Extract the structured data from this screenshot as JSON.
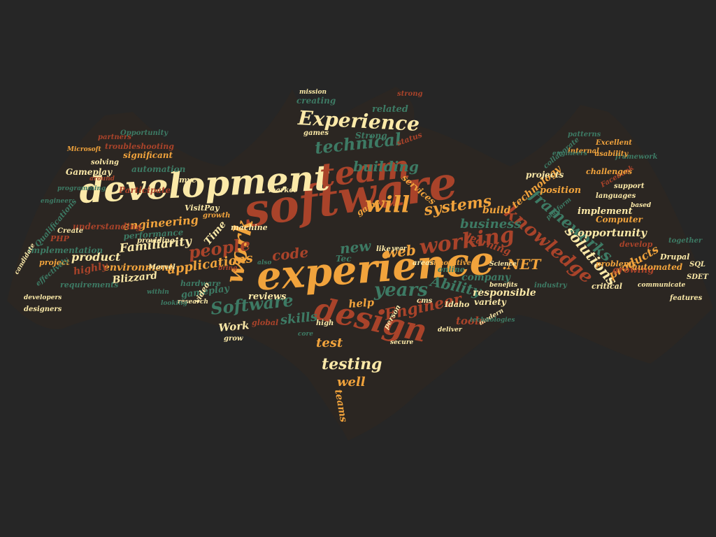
{
  "palette": {
    "background": "#262626",
    "cream": "#fbe9a8",
    "orange": "#f1a33c",
    "rust": "#a9432a",
    "green": "#3d7a64"
  },
  "shape": "bat-silhouette",
  "words": [
    {
      "text": "software",
      "color": "rust"
    },
    {
      "text": "experience",
      "color": "orange"
    },
    {
      "text": "development",
      "color": "cream"
    },
    {
      "text": "team",
      "color": "rust"
    },
    {
      "text": "design",
      "color": "rust"
    },
    {
      "text": "will",
      "color": "orange"
    },
    {
      "text": "work",
      "color": "orange"
    },
    {
      "text": "Experience",
      "color": "cream"
    },
    {
      "text": "working",
      "color": "rust"
    },
    {
      "text": "technical",
      "color": "green"
    },
    {
      "text": "knowledge",
      "color": "rust"
    },
    {
      "text": "Software",
      "color": "green"
    },
    {
      "text": "years",
      "color": "green"
    },
    {
      "text": "people",
      "color": "rust"
    },
    {
      "text": "testing",
      "color": "cream"
    },
    {
      "text": "building",
      "color": "green"
    },
    {
      "text": "systems",
      "color": "orange"
    },
    {
      "text": "frameworks",
      "color": "green"
    },
    {
      "text": "solutions",
      "color": "cream"
    },
    {
      "text": "business",
      "color": "green"
    },
    {
      "text": "code",
      "color": "rust"
    },
    {
      "text": "new",
      "color": "green"
    },
    {
      "text": "web",
      "color": "orange"
    },
    {
      "text": "Engineer",
      "color": "rust"
    },
    {
      "text": "Ability",
      "color": "green"
    },
    {
      "text": ".NET",
      "color": "orange"
    },
    {
      "text": "skills",
      "color": "green"
    },
    {
      "text": "test",
      "color": "orange"
    },
    {
      "text": "well",
      "color": "orange"
    },
    {
      "text": "engineering",
      "color": "orange"
    },
    {
      "text": "applications",
      "color": "orange"
    },
    {
      "text": "Familiarity",
      "color": "cream"
    },
    {
      "text": "company",
      "color": "green"
    },
    {
      "text": "learning",
      "color": "rust"
    },
    {
      "text": "technology",
      "color": "orange"
    },
    {
      "text": "products",
      "color": "orange"
    },
    {
      "text": "opportunity",
      "color": "cream"
    },
    {
      "text": "environment",
      "color": "orange"
    },
    {
      "text": "product",
      "color": "cream"
    },
    {
      "text": "gameplay",
      "color": "green"
    },
    {
      "text": "Blizzard",
      "color": "cream"
    },
    {
      "text": "reviews",
      "color": "cream"
    },
    {
      "text": "Work",
      "color": "cream"
    },
    {
      "text": "related",
      "color": "green"
    },
    {
      "text": "help",
      "color": "orange"
    },
    {
      "text": "tools",
      "color": "rust"
    },
    {
      "text": "responsible",
      "color": "cream"
    },
    {
      "text": "services",
      "color": "orange"
    },
    {
      "text": "build",
      "color": "orange"
    },
    {
      "text": "position",
      "color": "orange"
    },
    {
      "text": "implement",
      "color": "cream"
    },
    {
      "text": "Computer",
      "color": "orange"
    },
    {
      "text": "teams",
      "color": "orange"
    },
    {
      "text": "Time",
      "color": "cream"
    },
    {
      "text": "performance",
      "color": "green"
    },
    {
      "text": "highly",
      "color": "rust"
    },
    {
      "text": "significant",
      "color": "orange"
    },
    {
      "text": "automation",
      "color": "green"
    },
    {
      "text": "Participate",
      "color": "rust"
    },
    {
      "text": "implementation",
      "color": "green"
    },
    {
      "text": "troubleshooting",
      "color": "rust"
    },
    {
      "text": "Gameplay",
      "color": "cream"
    },
    {
      "text": "projects",
      "color": "cream"
    },
    {
      "text": "understanding",
      "color": "rust"
    },
    {
      "text": "requirements",
      "color": "green"
    },
    {
      "text": "growing",
      "color": "rust"
    },
    {
      "text": "Strong",
      "color": "green"
    },
    {
      "text": "Tec",
      "color": "green"
    },
    {
      "text": "creating",
      "color": "green"
    },
    {
      "text": "online",
      "color": "green"
    },
    {
      "text": "Idaho",
      "color": "cream"
    },
    {
      "text": "variety",
      "color": "cream"
    },
    {
      "text": "machine",
      "color": "cream"
    },
    {
      "text": "game",
      "color": "orange"
    },
    {
      "text": "VisitPay",
      "color": "cream"
    },
    {
      "text": "status",
      "color": "rust"
    },
    {
      "text": "mvc",
      "color": "cream"
    },
    {
      "text": "hardware",
      "color": "green"
    },
    {
      "text": "video",
      "color": "cream"
    },
    {
      "text": "global",
      "color": "rust"
    },
    {
      "text": "grow",
      "color": "cream"
    },
    {
      "text": "critical",
      "color": "cream"
    },
    {
      "text": "automated",
      "color": "orange"
    },
    {
      "text": "Drupal",
      "color": "cream"
    },
    {
      "text": "SDET",
      "color": "cream"
    },
    {
      "text": "SQL",
      "color": "cream"
    },
    {
      "text": "Marvel",
      "color": "cream"
    },
    {
      "text": "PHP",
      "color": "rust"
    },
    {
      "text": "project",
      "color": "orange"
    },
    {
      "text": "develop",
      "color": "rust"
    },
    {
      "text": "problems",
      "color": "orange"
    },
    {
      "text": "Facebook",
      "color": "rust"
    },
    {
      "text": "internal",
      "color": "orange"
    },
    {
      "text": "growth",
      "color": "orange"
    },
    {
      "text": "providing",
      "color": "cream"
    },
    {
      "text": "like",
      "color": "cream"
    },
    {
      "text": "cms",
      "color": "cream"
    },
    {
      "text": "designers",
      "color": "cream"
    },
    {
      "text": "market",
      "color": "cream"
    },
    {
      "text": "Qualifications",
      "color": "green"
    },
    {
      "text": "Create",
      "color": "cream"
    },
    {
      "text": "effectively",
      "color": "green"
    },
    {
      "text": "solving",
      "color": "cream"
    },
    {
      "text": "partners",
      "color": "rust"
    },
    {
      "text": "Opportunity",
      "color": "green"
    },
    {
      "text": "challenges",
      "color": "orange"
    },
    {
      "text": "collaborate",
      "color": "green"
    },
    {
      "text": "framework",
      "color": "green"
    },
    {
      "text": "Excellent",
      "color": "orange"
    },
    {
      "text": "patterns",
      "color": "green"
    },
    {
      "text": "usability",
      "color": "orange"
    },
    {
      "text": "mission",
      "color": "cream"
    },
    {
      "text": "strong",
      "color": "rust"
    },
    {
      "text": "games",
      "color": "cream"
    },
    {
      "text": "bring",
      "color": "rust"
    },
    {
      "text": "research",
      "color": "cream"
    },
    {
      "text": "high",
      "color": "cream"
    },
    {
      "text": "person",
      "color": "cream"
    },
    {
      "text": "areas",
      "color": "cream"
    },
    {
      "text": "innovative",
      "color": "orange"
    },
    {
      "text": "industry",
      "color": "green"
    },
    {
      "text": "together",
      "color": "green"
    },
    {
      "text": "languages",
      "color": "cream"
    },
    {
      "text": "support",
      "color": "cream"
    },
    {
      "text": "features",
      "color": "cream"
    },
    {
      "text": "Science",
      "color": "cream"
    },
    {
      "text": "deliver",
      "color": "cream"
    },
    {
      "text": "modern",
      "color": "cream"
    },
    {
      "text": "secure",
      "color": "cream"
    },
    {
      "text": "year",
      "color": "cream"
    },
    {
      "text": "also",
      "color": "green"
    },
    {
      "text": "core",
      "color": "green"
    },
    {
      "text": "based",
      "color": "cream"
    },
    {
      "text": "around",
      "color": "rust"
    },
    {
      "text": "candidate",
      "color": "cream"
    },
    {
      "text": "within",
      "color": "green"
    },
    {
      "text": "looking",
      "color": "green"
    },
    {
      "text": "programming",
      "color": "green"
    },
    {
      "text": "engineer",
      "color": "green"
    },
    {
      "text": "Microsoft",
      "color": "orange"
    },
    {
      "text": "developers",
      "color": "cream"
    },
    {
      "text": "platform",
      "color": "green"
    },
    {
      "text": "engineers",
      "color": "green"
    },
    {
      "text": "benefits",
      "color": "cream"
    },
    {
      "text": "communicate",
      "color": "cream"
    },
    {
      "text": "technologies",
      "color": "green"
    }
  ]
}
